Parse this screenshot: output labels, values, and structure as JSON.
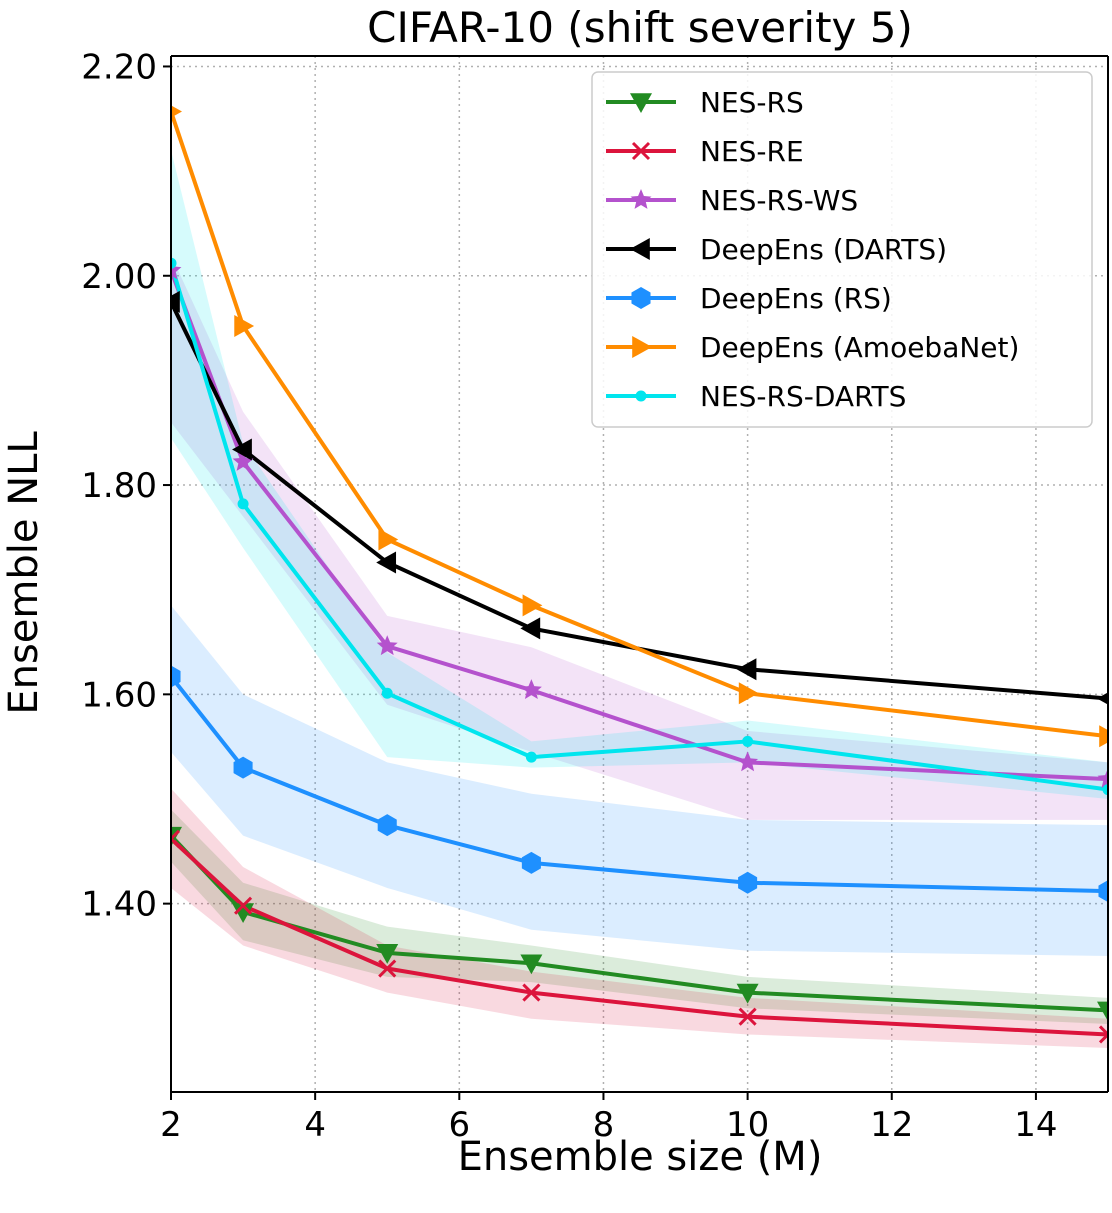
{
  "chart_data": {
    "type": "line",
    "title": "CIFAR-10 (shift severity 5)",
    "xlabel": "Ensemble size (M)",
    "ylabel": "Ensemble NLL",
    "xlim": [
      2,
      15
    ],
    "ylim": [
      1.22,
      2.21
    ],
    "xticks": [
      2,
      4,
      6,
      8,
      10,
      12,
      14
    ],
    "yticks": [
      1.4,
      1.6,
      1.8,
      2.0,
      2.2
    ],
    "ytick_labels": [
      "1.40",
      "1.60",
      "1.80",
      "2.00",
      "2.20"
    ],
    "grid": true,
    "legend_position": "top-right",
    "x": [
      2,
      3,
      5,
      7,
      10,
      15
    ],
    "series": [
      {
        "name": "NES-RS",
        "color": "#228b22",
        "marker": "triangle-down",
        "values": [
          1.465,
          1.392,
          1.353,
          1.343,
          1.315,
          1.298
        ],
        "band_low": [
          1.44,
          1.365,
          1.33,
          1.325,
          1.3,
          1.285
        ],
        "band_high": [
          1.49,
          1.42,
          1.378,
          1.36,
          1.33,
          1.31
        ]
      },
      {
        "name": "NES-RE",
        "color": "#dc143c",
        "marker": "x",
        "values": [
          1.462,
          1.398,
          1.338,
          1.315,
          1.292,
          1.275
        ],
        "band_low": [
          1.415,
          1.36,
          1.315,
          1.29,
          1.275,
          1.262
        ],
        "band_high": [
          1.51,
          1.435,
          1.36,
          1.335,
          1.31,
          1.29
        ]
      },
      {
        "name": "NES-RS-WS",
        "color": "#b452cd",
        "marker": "star",
        "values": [
          2.005,
          1.822,
          1.646,
          1.604,
          1.535,
          1.519
        ],
        "band_low": [
          1.86,
          1.77,
          1.59,
          1.545,
          1.48,
          1.48
        ],
        "band_high": [
          2.02,
          1.87,
          1.675,
          1.645,
          1.565,
          1.535
        ]
      },
      {
        "name": "DeepEns (DARTS)",
        "color": "#000000",
        "marker": "triangle-left",
        "values": [
          1.975,
          1.834,
          1.726,
          1.663,
          1.624,
          1.596
        ]
      },
      {
        "name": "DeepEns (RS)",
        "color": "#1e90ff",
        "marker": "hexagon",
        "values": [
          1.617,
          1.53,
          1.475,
          1.439,
          1.42,
          1.412
        ],
        "band_low": [
          1.545,
          1.465,
          1.415,
          1.375,
          1.355,
          1.35
        ],
        "band_high": [
          1.685,
          1.6,
          1.535,
          1.505,
          1.48,
          1.475
        ]
      },
      {
        "name": "DeepEns (AmoebaNet)",
        "color": "#ff8c00",
        "marker": "triangle-right",
        "values": [
          2.157,
          1.952,
          1.748,
          1.685,
          1.601,
          1.56
        ]
      },
      {
        "name": "NES-RS-DARTS",
        "color": "#00e5ee",
        "marker": "dot",
        "values": [
          2.012,
          1.782,
          1.601,
          1.54,
          1.555,
          1.509
        ],
        "band_low": [
          1.845,
          1.74,
          1.54,
          1.53,
          1.535,
          1.5
        ],
        "band_high": [
          2.12,
          1.84,
          1.64,
          1.555,
          1.575,
          1.535
        ]
      }
    ]
  }
}
